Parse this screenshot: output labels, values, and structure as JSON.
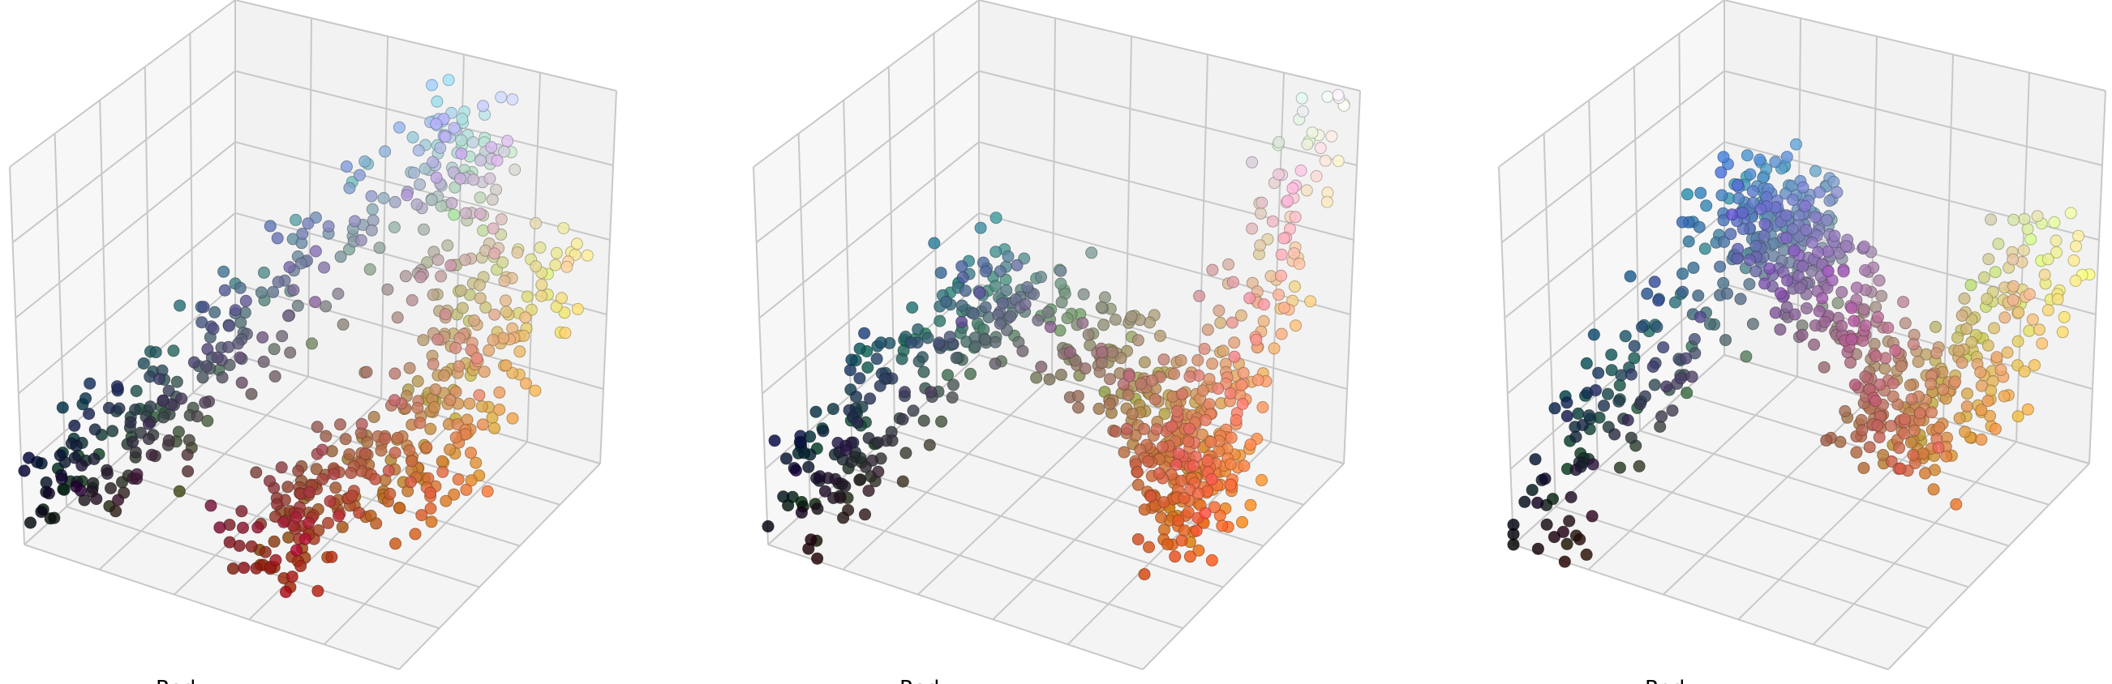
{
  "chart_data": [
    {
      "type": "scatter3d",
      "xlabel": "Red",
      "ylabel": "",
      "zlabel": "",
      "xlim": [
        0,
        1
      ],
      "ylim": [
        0,
        1
      ],
      "zlim": [
        0,
        1
      ],
      "grid": true,
      "legend": "none",
      "seed": 11,
      "points": [
        {
          "r": 0.05,
          "g": 0.07,
          "b": 0.12
        },
        {
          "r": 0.25,
          "g": 0.3,
          "b": 0.35
        },
        {
          "r": 0.75,
          "g": 0.85,
          "b": 0.95
        },
        {
          "r": 0.85,
          "g": 0.55,
          "b": 0.25
        },
        {
          "r": 0.55,
          "g": 0.12,
          "b": 0.1
        },
        {
          "r": 0.95,
          "g": 0.92,
          "b": 0.55
        }
      ]
    },
    {
      "type": "scatter3d",
      "xlabel": "Red",
      "ylabel": "",
      "zlabel": "",
      "xlim": [
        0,
        1
      ],
      "ylim": [
        0,
        1
      ],
      "zlim": [
        0,
        1
      ],
      "grid": true,
      "legend": "none",
      "seed": 23,
      "points": [
        {
          "r": 0.05,
          "g": 0.06,
          "b": 0.08
        },
        {
          "r": 0.3,
          "g": 0.5,
          "b": 0.55
        },
        {
          "r": 0.8,
          "g": 0.55,
          "b": 0.35
        },
        {
          "r": 0.9,
          "g": 0.4,
          "b": 0.15
        },
        {
          "r": 0.98,
          "g": 0.98,
          "b": 0.95
        }
      ]
    },
    {
      "type": "scatter3d",
      "xlabel": "Red",
      "ylabel": "",
      "zlabel": "",
      "xlim": [
        0,
        1
      ],
      "ylim": [
        0,
        1
      ],
      "zlim": [
        0,
        1
      ],
      "grid": true,
      "legend": "none",
      "seed": 37,
      "points": [
        {
          "r": 0.04,
          "g": 0.04,
          "b": 0.05
        },
        {
          "r": 0.35,
          "g": 0.6,
          "b": 0.75
        },
        {
          "r": 0.55,
          "g": 0.45,
          "b": 0.7
        },
        {
          "r": 0.8,
          "g": 0.5,
          "b": 0.25
        },
        {
          "r": 0.95,
          "g": 0.95,
          "b": 0.6
        }
      ]
    }
  ]
}
